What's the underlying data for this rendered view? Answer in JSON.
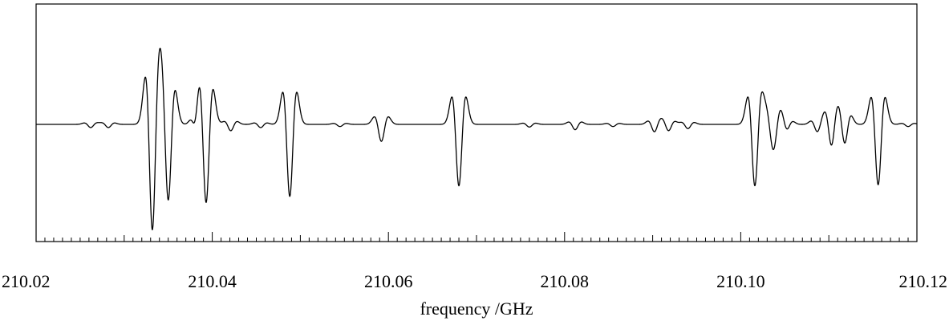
{
  "chart_data": {
    "type": "line",
    "xlabel": "frequency /GHz",
    "ylabel": "",
    "title": "",
    "xlim": [
      210.02,
      210.12
    ],
    "ylim": [
      -1.0,
      1.0
    ],
    "x_tick_labels": [
      "210.02",
      "210.04",
      "210.06",
      "210.08",
      "210.10",
      "210.12"
    ],
    "x_tick_values": [
      210.02,
      210.04,
      210.06,
      210.08,
      210.1,
      210.12
    ],
    "minor_tick_step": 0.001,
    "grid": false,
    "y_axis_labels_shown": false,
    "line_shape": "second-derivative lineshape",
    "series": [
      {
        "lines": [
          {
            "x": 210.0332,
            "amp": 1.0,
            "width": 0.00065
          },
          {
            "x": 210.035,
            "amp": 0.72,
            "width": 0.00065
          },
          {
            "x": 210.0381,
            "amp": 0.08,
            "width": 0.0005
          },
          {
            "x": 210.0393,
            "amp": 0.74,
            "width": 0.00065
          },
          {
            "x": 210.0421,
            "amp": 0.06,
            "width": 0.0006
          },
          {
            "x": 210.0488,
            "amp": 0.68,
            "width": 0.00065
          },
          {
            "x": 210.0592,
            "amp": 0.16,
            "width": 0.00065
          },
          {
            "x": 210.068,
            "amp": 0.58,
            "width": 0.00065
          },
          {
            "x": 210.0812,
            "amp": 0.05,
            "width": 0.0006
          },
          {
            "x": 210.0902,
            "amp": 0.07,
            "width": 0.0006
          },
          {
            "x": 210.0918,
            "amp": 0.06,
            "width": 0.0006
          },
          {
            "x": 210.1016,
            "amp": 0.58,
            "width": 0.00065
          },
          {
            "x": 210.1037,
            "amp": 0.24,
            "width": 0.0007
          },
          {
            "x": 210.1052,
            "amp": 0.06,
            "width": 0.0006
          },
          {
            "x": 210.1087,
            "amp": 0.07,
            "width": 0.0006
          },
          {
            "x": 210.1103,
            "amp": 0.2,
            "width": 0.0006
          },
          {
            "x": 210.1118,
            "amp": 0.18,
            "width": 0.0006
          },
          {
            "x": 210.1156,
            "amp": 0.57,
            "width": 0.00065
          },
          {
            "x": 210.0262,
            "amp": 0.03,
            "width": 0.0006
          },
          {
            "x": 210.0282,
            "amp": 0.03,
            "width": 0.0006
          },
          {
            "x": 210.0455,
            "amp": 0.03,
            "width": 0.0006
          },
          {
            "x": 210.0545,
            "amp": 0.02,
            "width": 0.0006
          },
          {
            "x": 210.076,
            "amp": 0.025,
            "width": 0.0006
          },
          {
            "x": 210.0855,
            "amp": 0.02,
            "width": 0.0006
          },
          {
            "x": 210.094,
            "amp": 0.04,
            "width": 0.0006
          },
          {
            "x": 210.119,
            "amp": 0.02,
            "width": 0.0006
          }
        ]
      }
    ]
  }
}
